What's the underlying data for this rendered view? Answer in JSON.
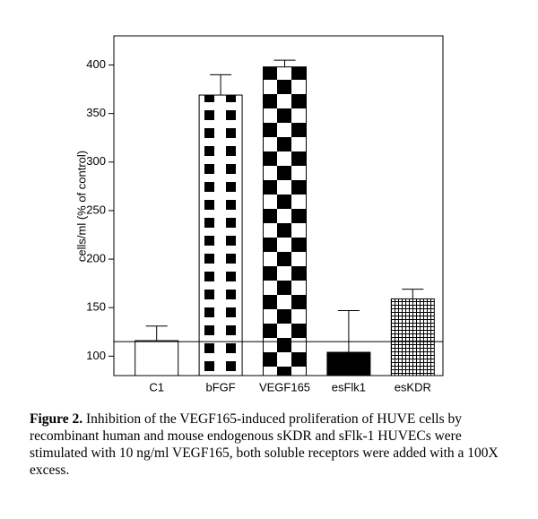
{
  "chart_data": {
    "type": "bar",
    "y_label": "cells/ml (% of control)",
    "categories": [
      "C1",
      "bFGF",
      "VEGF165",
      "esFlk1",
      "esKDR"
    ],
    "values": [
      116,
      369,
      398,
      104,
      159
    ],
    "errors": [
      15,
      21,
      7,
      43,
      10
    ],
    "fill_patterns": [
      "none",
      "squares",
      "checker",
      "solid",
      "grid"
    ],
    "color": "#000000",
    "reference_line": 115,
    "ylim": [
      80,
      430
    ],
    "yticks": [
      100,
      150,
      200,
      250,
      300,
      350,
      400
    ],
    "grid": false
  },
  "caption": {
    "label": "Figure 2.",
    "text": " Inhibition of the VEGF165-induced proliferation of HUVE cells by recombinant human and mouse endogenous sKDR and sFlk-1 HUVECs were stimulated with 10 ng/ml VEGF165, both soluble receptors were added with a 100X excess."
  }
}
